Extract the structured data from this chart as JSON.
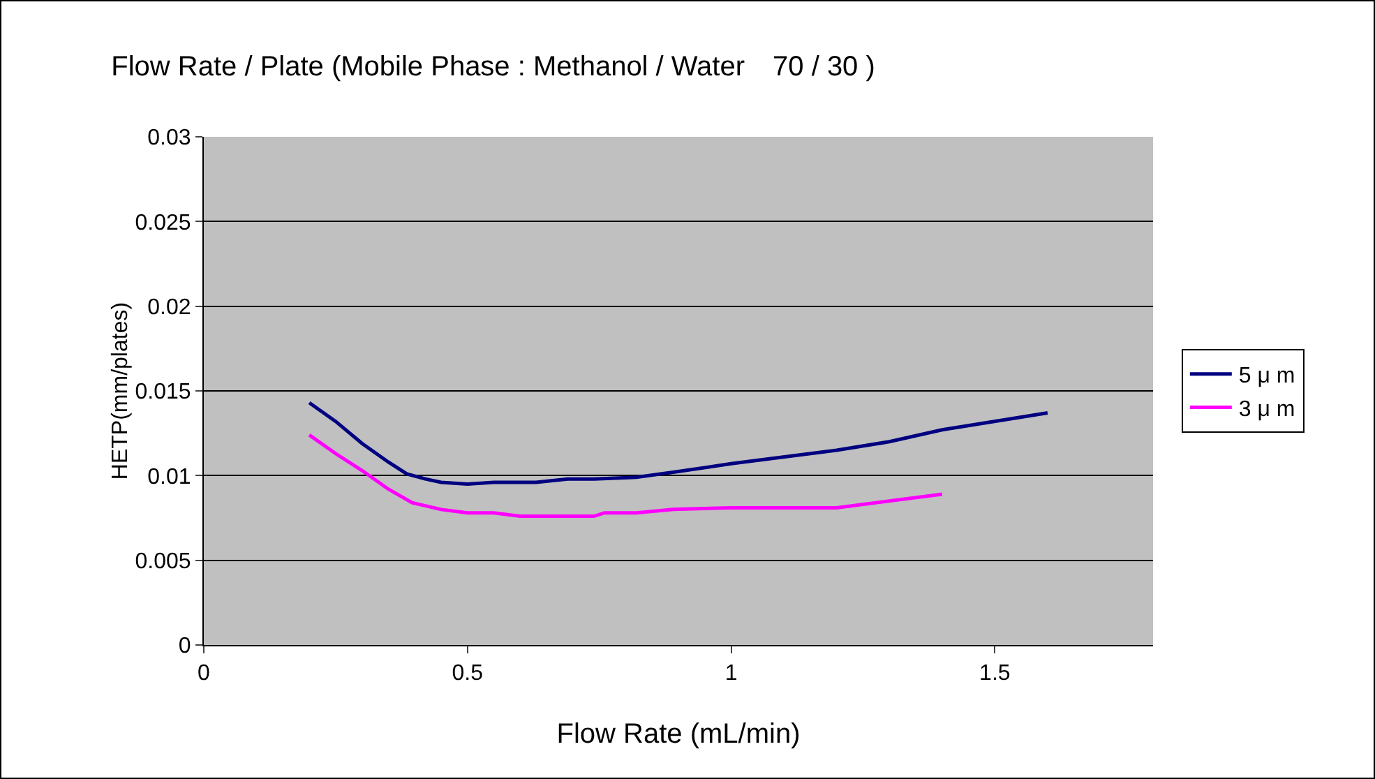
{
  "chart_data": {
    "type": "line",
    "title": "Flow Rate / Plate (Mobile Phase : Methanol / Water　70 / 30 )",
    "xlabel": "Flow Rate (mL/min)",
    "ylabel": "HETP(mm/plates)",
    "xlim": [
      0,
      1.8
    ],
    "xticks": [
      0,
      0.5,
      1,
      1.5
    ],
    "ylim": [
      0,
      0.03
    ],
    "yticks": [
      0,
      0.005,
      0.01,
      0.015,
      0.02,
      0.025,
      0.03
    ],
    "grid": "y",
    "legend": "right",
    "marker": "none",
    "line_style": "solid",
    "series": [
      {
        "name": "5 μ m",
        "color": "#000080",
        "x": [
          0.2,
          0.25,
          0.3,
          0.35,
          0.385,
          0.42,
          0.45,
          0.5,
          0.55,
          0.63,
          0.69,
          0.74,
          0.82,
          0.89,
          1.0,
          1.2,
          1.3,
          1.4,
          1.6
        ],
        "values": [
          0.0143,
          0.0132,
          0.0119,
          0.0108,
          0.0101,
          0.0098,
          0.0096,
          0.0095,
          0.0096,
          0.0096,
          0.0098,
          0.0098,
          0.0099,
          0.0102,
          0.0107,
          0.0115,
          0.012,
          0.0127,
          0.0137
        ]
      },
      {
        "name": "3 μ m",
        "color": "#ff00ff",
        "x": [
          0.2,
          0.25,
          0.3,
          0.35,
          0.395,
          0.45,
          0.5,
          0.55,
          0.6,
          0.74,
          0.76,
          0.82,
          0.89,
          1.0,
          1.2,
          1.4
        ],
        "values": [
          0.0124,
          0.0113,
          0.0103,
          0.0092,
          0.0084,
          0.008,
          0.0078,
          0.0078,
          0.0076,
          0.0076,
          0.0078,
          0.0078,
          0.008,
          0.0081,
          0.0081,
          0.0089
        ]
      }
    ]
  }
}
